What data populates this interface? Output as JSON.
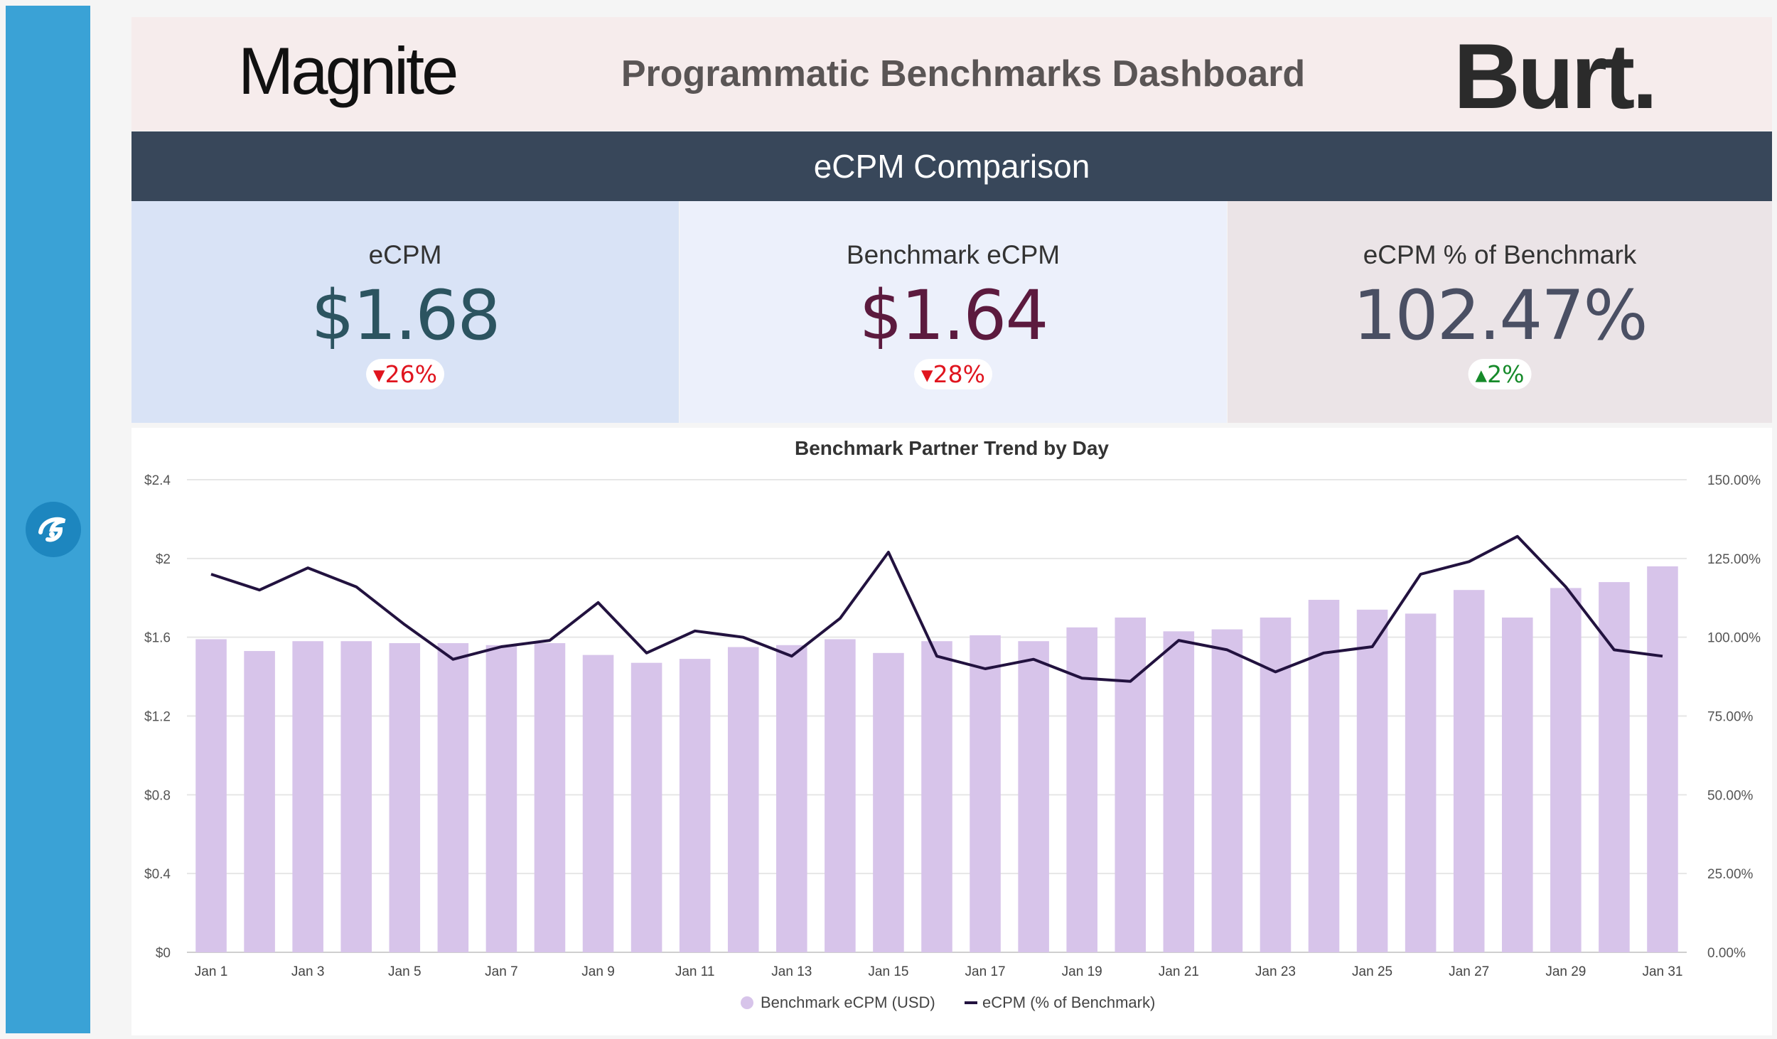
{
  "header": {
    "brand_left": "Magnite",
    "title": "Programmatic Benchmarks Dashboard",
    "brand_right": "Burt."
  },
  "section_title": "eCPM Comparison",
  "kpis": [
    {
      "label": "eCPM",
      "value": "$1.68",
      "change": "26%",
      "direction": "down",
      "value_color": "#2c5460",
      "change_color": "#e0141e"
    },
    {
      "label": "Benchmark eCPM",
      "value": "$1.64",
      "change": "28%",
      "direction": "down",
      "value_color": "#5c1a3e",
      "change_color": "#e0141e"
    },
    {
      "label": "eCPM % of Benchmark",
      "value": "102.47%",
      "change": "2%",
      "direction": "up",
      "value_color": "#4a4f63",
      "change_color": "#168a2a"
    }
  ],
  "chart_data": {
    "type": "bar",
    "title": "Benchmark Partner Trend by Day",
    "categories": [
      "Jan 1",
      "Jan 2",
      "Jan 3",
      "Jan 4",
      "Jan 5",
      "Jan 6",
      "Jan 7",
      "Jan 8",
      "Jan 9",
      "Jan 10",
      "Jan 11",
      "Jan 12",
      "Jan 13",
      "Jan 14",
      "Jan 15",
      "Jan 16",
      "Jan 17",
      "Jan 18",
      "Jan 19",
      "Jan 20",
      "Jan 21",
      "Jan 22",
      "Jan 23",
      "Jan 24",
      "Jan 25",
      "Jan 26",
      "Jan 27",
      "Jan 28",
      "Jan 29",
      "Jan 30",
      "Jan 31"
    ],
    "xtick_labels": [
      "Jan 1",
      "",
      "Jan 3",
      "",
      "Jan 5",
      "",
      "Jan 7",
      "",
      "Jan 9",
      "",
      "Jan 11",
      "",
      "Jan 13",
      "",
      "Jan 15",
      "",
      "Jan 17",
      "",
      "Jan 19",
      "",
      "Jan 21",
      "",
      "Jan 23",
      "",
      "Jan 25",
      "",
      "Jan 27",
      "",
      "Jan 29",
      "",
      "Jan 31"
    ],
    "series": [
      {
        "name": "Benchmark eCPM (USD)",
        "kind": "bar",
        "axis": "left",
        "color": "#d7c4ea",
        "values": [
          1.59,
          1.53,
          1.58,
          1.58,
          1.57,
          1.57,
          1.56,
          1.57,
          1.51,
          1.47,
          1.49,
          1.55,
          1.56,
          1.59,
          1.52,
          1.58,
          1.61,
          1.58,
          1.65,
          1.7,
          1.63,
          1.64,
          1.7,
          1.79,
          1.74,
          1.72,
          1.84,
          1.7,
          1.85,
          1.88,
          1.96
        ]
      },
      {
        "name": "eCPM (% of Benchmark)",
        "kind": "line",
        "axis": "right",
        "color": "#22123f",
        "values": [
          120,
          115,
          122,
          116,
          104,
          93,
          97,
          99,
          111,
          95,
          102,
          100,
          94,
          106,
          127,
          94,
          90,
          93,
          87,
          86,
          99,
          96,
          89,
          95,
          97,
          120,
          124,
          132,
          116,
          96,
          94
        ]
      }
    ],
    "y_left": {
      "ticks": [
        "$0",
        "$0.4",
        "$0.8",
        "$1.2",
        "$1.6",
        "$2",
        "$2.4"
      ],
      "ylim": [
        0,
        2.4
      ]
    },
    "y_right": {
      "ticks": [
        "0.00%",
        "25.00%",
        "50.00%",
        "75.00%",
        "100.00%",
        "125.00%",
        "150.00%"
      ],
      "ylim": [
        0,
        150
      ]
    },
    "grid": true,
    "legend": "bottom-center"
  }
}
